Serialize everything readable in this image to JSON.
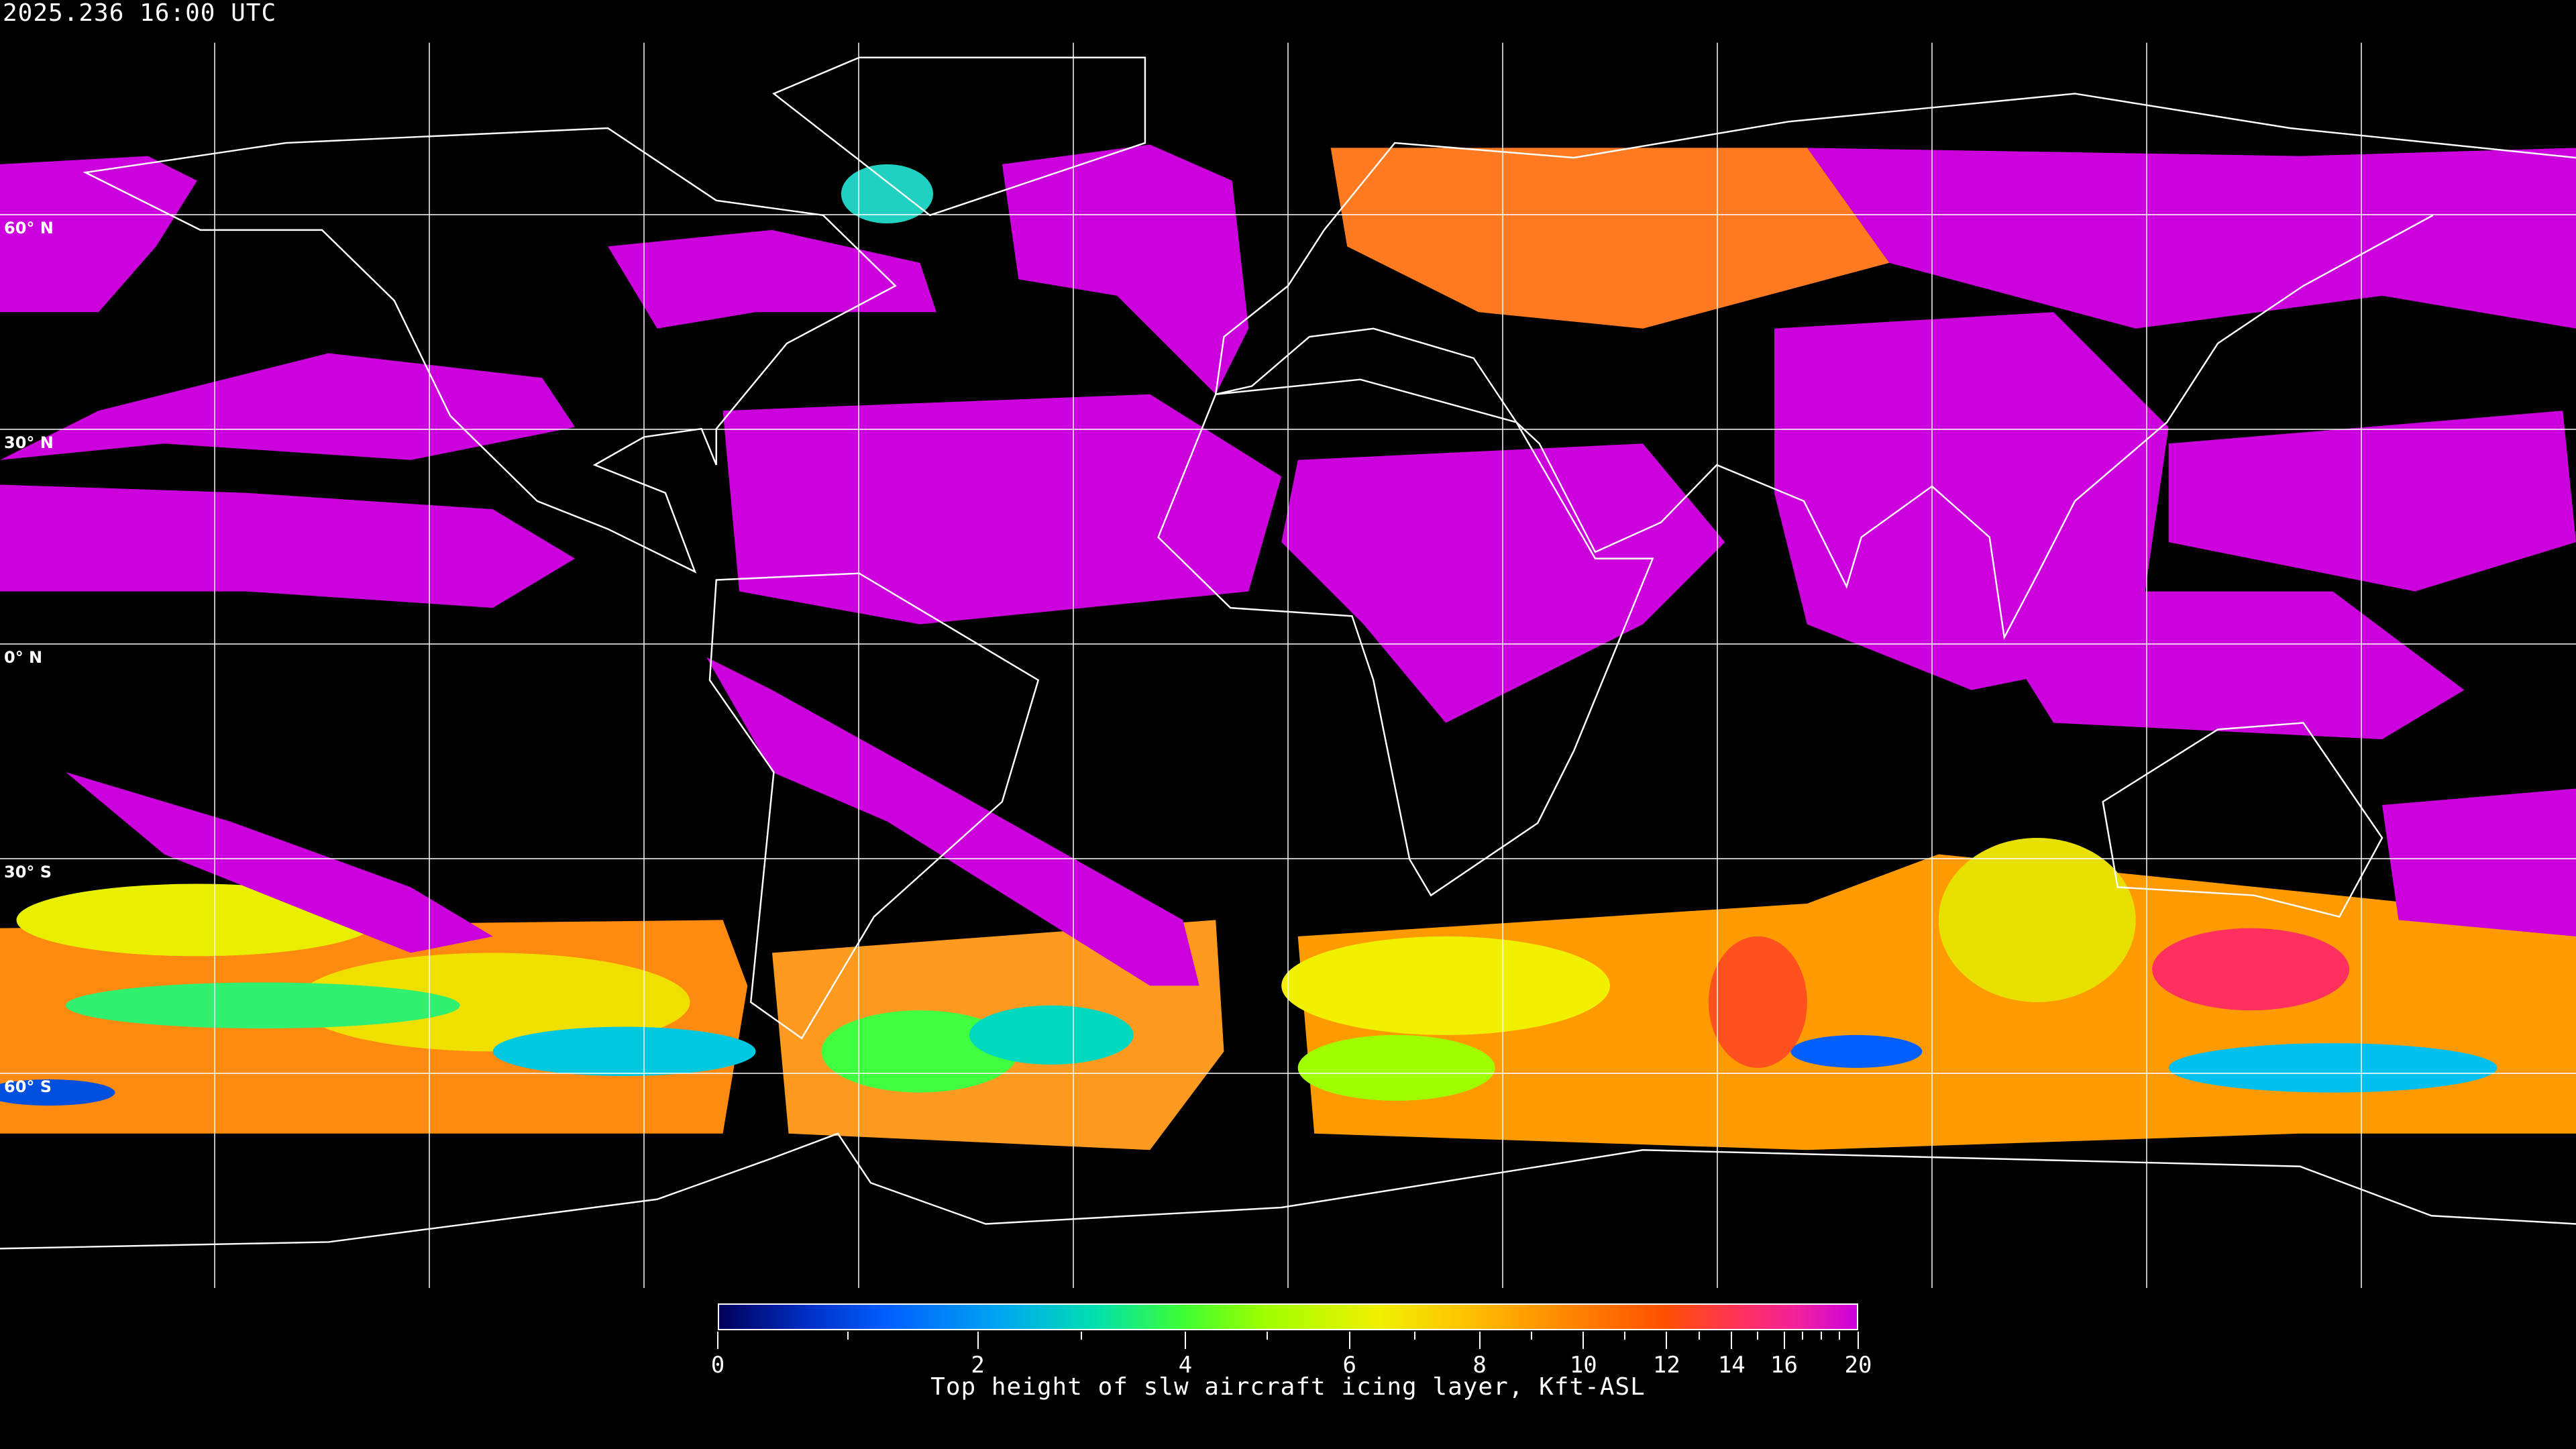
{
  "header": {
    "timestamp": "2025.236 16:00 UTC"
  },
  "map": {
    "projection": "equirectangular",
    "graticule_spacing_deg": 30,
    "lat_labels": [
      "60° N",
      "30° N",
      "0° N",
      "30° S",
      "60° S"
    ],
    "coastline_color": "#ffffff",
    "background": "#000000"
  },
  "colorbar": {
    "title": "Top height of slw aircraft icing layer, Kft-ASL",
    "min": 0,
    "max": 20,
    "tick_labels": [
      "0",
      "2",
      "4",
      "6",
      "8",
      "10",
      "12",
      "14",
      "16",
      "20"
    ],
    "colors": [
      "#00005a",
      "#0060ff",
      "#00a8f0",
      "#40ff30",
      "#f0f000",
      "#ff9800",
      "#ff5000",
      "#ff3060",
      "#cc00dd"
    ]
  }
}
